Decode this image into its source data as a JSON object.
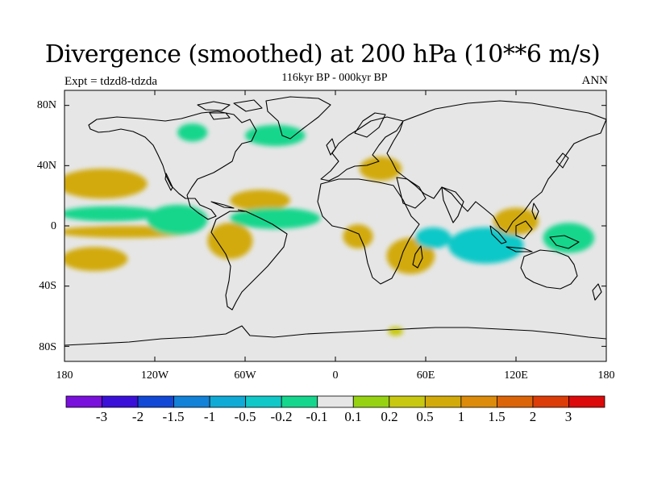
{
  "title": "Divergence (smoothed) at 200 hPa (10**6 m/s)",
  "subtitle": "116kyr BP - 000kyr BP",
  "experiment_label": "Expt = tdzd8-tdzda",
  "season_label": "ANN",
  "chart_data": {
    "type": "heatmap",
    "variable": "Divergence (smoothed) at 200 hPa",
    "units": "10**6 m/s",
    "projection": "cylindrical-equidistant",
    "lon_range": [
      -180,
      180
    ],
    "lat_range": [
      -90,
      90
    ],
    "x_ticks": [
      {
        "lon": -180,
        "label": "180"
      },
      {
        "lon": -120,
        "label": "120W"
      },
      {
        "lon": -60,
        "label": "60W"
      },
      {
        "lon": 0,
        "label": "0"
      },
      {
        "lon": 60,
        "label": "60E"
      },
      {
        "lon": 120,
        "label": "120E"
      },
      {
        "lon": 180,
        "label": "180"
      }
    ],
    "y_ticks": [
      {
        "lat": 80,
        "label": "80N"
      },
      {
        "lat": 40,
        "label": "40N"
      },
      {
        "lat": 0,
        "label": "0"
      },
      {
        "lat": -40,
        "label": "40S"
      },
      {
        "lat": -80,
        "label": "80S"
      }
    ],
    "colorbar": {
      "colors": [
        "#7a10dc",
        "#3a10d8",
        "#1248d6",
        "#1282d8",
        "#10aad6",
        "#10c8c8",
        "#14d68c",
        "#e6e6e6",
        "#96d212",
        "#c8c810",
        "#d2aa0a",
        "#dc8c0a",
        "#dc6408",
        "#dc3c08",
        "#dc0a0a"
      ],
      "levels": [
        "-3",
        "-2",
        "-1.5",
        "-1",
        "-0.5",
        "-0.2",
        "-0.1",
        "0.1",
        "0.2",
        "0.5",
        "1",
        "1.5",
        "2",
        "3"
      ]
    },
    "anomaly_regions": [
      {
        "lon": -155,
        "lat": 28,
        "rx": 30,
        "ry": 10,
        "value": 0.5
      },
      {
        "lon": -150,
        "lat": 8,
        "rx": 33,
        "ry": 5,
        "value": -0.2
      },
      {
        "lon": -140,
        "lat": -4,
        "rx": 45,
        "ry": 4,
        "value": 0.5
      },
      {
        "lon": -160,
        "lat": -22,
        "rx": 22,
        "ry": 8,
        "value": 0.5
      },
      {
        "lon": -105,
        "lat": 4,
        "rx": 20,
        "ry": 10,
        "value": -0.2
      },
      {
        "lon": -70,
        "lat": -10,
        "rx": 15,
        "ry": 12,
        "value": 0.5
      },
      {
        "lon": -50,
        "lat": 17,
        "rx": 20,
        "ry": 7,
        "value": 0.5
      },
      {
        "lon": -40,
        "lat": 5,
        "rx": 30,
        "ry": 7,
        "value": -0.2
      },
      {
        "lon": 15,
        "lat": -7,
        "rx": 10,
        "ry": 8,
        "value": 0.5
      },
      {
        "lon": 50,
        "lat": -20,
        "rx": 16,
        "ry": 12,
        "value": 0.5
      },
      {
        "lon": 65,
        "lat": -8,
        "rx": 12,
        "ry": 7,
        "value": -0.5
      },
      {
        "lon": 100,
        "lat": -13,
        "rx": 25,
        "ry": 12,
        "value": -0.5
      },
      {
        "lon": 120,
        "lat": 3,
        "rx": 15,
        "ry": 9,
        "value": 0.5
      },
      {
        "lon": 155,
        "lat": -8,
        "rx": 17,
        "ry": 10,
        "value": -0.2
      },
      {
        "lon": 30,
        "lat": 38,
        "rx": 14,
        "ry": 8,
        "value": 0.5
      },
      {
        "lon": -95,
        "lat": 62,
        "rx": 10,
        "ry": 6,
        "value": -0.2
      },
      {
        "lon": -40,
        "lat": 60,
        "rx": 20,
        "ry": 7,
        "value": -0.2
      },
      {
        "lon": 40,
        "lat": -70,
        "rx": 5,
        "ry": 3,
        "value": 0.2
      }
    ]
  }
}
